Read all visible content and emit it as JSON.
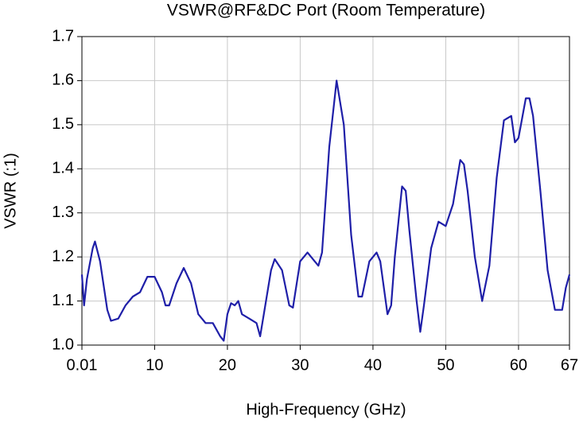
{
  "chart_data": {
    "type": "line",
    "title": "VSWR@RF&DC Port (Room Temperature)",
    "x_label": "High-Frequency (GHz)",
    "y_label": "VSWR (:1)",
    "xlim": [
      0.01,
      67
    ],
    "xticks": [
      0.01,
      10,
      20,
      30,
      40,
      50,
      60,
      67
    ],
    "ylim": [
      1.0,
      1.7
    ],
    "yticks": [
      {
        "value": 1.0,
        "label": "1.0"
      },
      1.1,
      1.2,
      1.3,
      1.4,
      1.5,
      1.6,
      1.7
    ],
    "grid": true,
    "series": [
      {
        "name": "VSWR",
        "color": "#1f1fa8",
        "x": [
          0.01,
          0.3,
          0.7,
          1.5,
          1.8,
          2.5,
          3.5,
          4,
          5,
          6,
          7,
          8,
          9,
          10,
          11,
          11.5,
          12,
          13,
          14,
          15,
          16,
          17,
          18,
          19,
          19.5,
          20,
          20.5,
          21,
          21.5,
          22,
          23,
          24,
          24.5,
          25,
          26,
          26.5,
          27.5,
          28.5,
          29,
          30,
          31,
          32,
          32.5,
          33,
          34,
          35,
          36,
          37,
          38,
          38.5,
          39.5,
          40.5,
          41,
          42,
          42.5,
          43,
          44,
          44.5,
          45,
          46,
          46.5,
          47,
          48,
          49,
          50,
          51,
          52,
          52.5,
          53,
          54,
          55,
          56,
          57,
          58,
          59,
          59.5,
          60,
          61,
          61.5,
          62,
          63,
          64,
          65,
          66,
          66.5,
          67
        ],
        "values": [
          1.16,
          1.09,
          1.15,
          1.22,
          1.235,
          1.19,
          1.08,
          1.055,
          1.06,
          1.09,
          1.11,
          1.12,
          1.155,
          1.155,
          1.12,
          1.09,
          1.09,
          1.14,
          1.175,
          1.14,
          1.07,
          1.05,
          1.05,
          1.02,
          1.01,
          1.07,
          1.095,
          1.09,
          1.1,
          1.07,
          1.06,
          1.05,
          1.02,
          1.07,
          1.17,
          1.195,
          1.17,
          1.09,
          1.085,
          1.19,
          1.21,
          1.19,
          1.18,
          1.21,
          1.45,
          1.6,
          1.5,
          1.25,
          1.11,
          1.11,
          1.19,
          1.21,
          1.19,
          1.07,
          1.09,
          1.2,
          1.36,
          1.35,
          1.26,
          1.1,
          1.03,
          1.09,
          1.22,
          1.28,
          1.27,
          1.32,
          1.42,
          1.41,
          1.35,
          1.2,
          1.1,
          1.18,
          1.38,
          1.51,
          1.52,
          1.46,
          1.47,
          1.56,
          1.56,
          1.52,
          1.35,
          1.17,
          1.08,
          1.08,
          1.13,
          1.16
        ]
      }
    ]
  }
}
